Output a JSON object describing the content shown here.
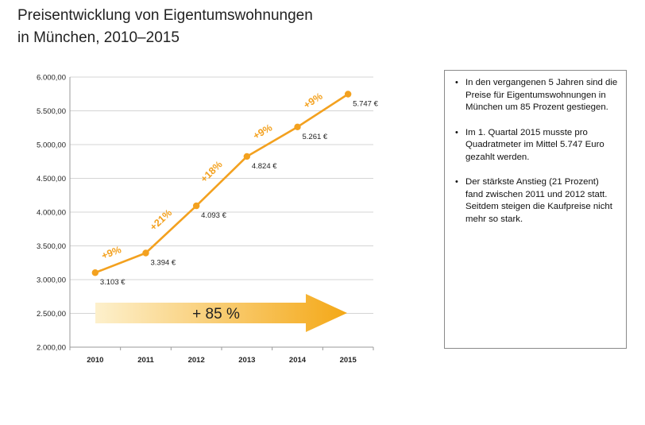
{
  "title": {
    "line1": "Preisentwicklung von Eigentumswohnungen",
    "line2": "in München, 2010–2015"
  },
  "chart_data": {
    "type": "line",
    "categories": [
      "2010",
      "2011",
      "2012",
      "2013",
      "2014",
      "2015"
    ],
    "values": [
      3103,
      3394,
      4093,
      4824,
      5261,
      5747
    ],
    "value_labels": [
      "3.103 €",
      "3.394 €",
      "4.093 €",
      "4.824 €",
      "5.261 €",
      "5.747 €"
    ],
    "growth_labels": [
      "+9%",
      "+21%",
      "+18%",
      "+9%",
      "+9%"
    ],
    "ylim": [
      2000,
      6000
    ],
    "yticks": [
      2000,
      2500,
      3000,
      3500,
      4000,
      4500,
      5000,
      5500,
      6000
    ],
    "ytick_labels": [
      "2.000,00",
      "2.500,00",
      "3.000,00",
      "3.500,00",
      "4.000,00",
      "4.500,00",
      "5.000,00",
      "5.500,00",
      "6.000,00"
    ],
    "grid": true,
    "overall_change_label": "+ 85 %",
    "xlabel": "",
    "ylabel": "",
    "colors": {
      "line": "#f3a11f",
      "growth_text": "#f3a11f",
      "arrow_start": "#fdf0cc",
      "arrow_end": "#f4a817",
      "grid": "#d4d4d4"
    }
  },
  "info_box": {
    "bullets": [
      "In den vergangenen 5 Jahren sind die Preise für Eigentumswohnungen in München um 85 Prozent gestiegen.",
      "Im 1. Quartal 2015 musste pro Quadratmeter im Mittel 5.747 Euro gezahlt werden.",
      "Der stärkste Anstieg (21 Prozent) fand zwischen 2011 und 2012 statt. Seitdem steigen die Kaufpreise nicht mehr so stark."
    ]
  }
}
